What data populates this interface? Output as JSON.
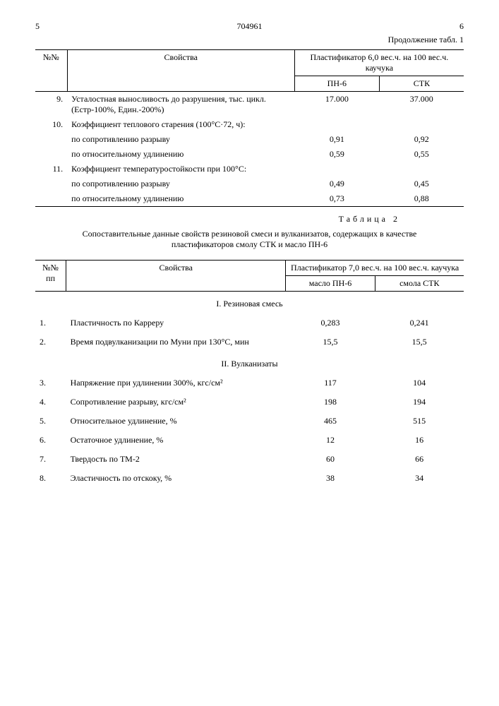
{
  "header": {
    "left_page": "5",
    "doc_number": "704961",
    "right_page": "6",
    "continuation": "Продолжение табл. 1"
  },
  "table1": {
    "col_num": "№№",
    "col_prop": "Свойства",
    "col_group": "Пластификатор 6,0 вес.ч. на 100 вес.ч. каучука",
    "col_a": "ПН-6",
    "col_b": "СТК",
    "rows": [
      {
        "n": "9.",
        "prop": "Усталостная выносливость до разрушения, тыс. цикл. (Естр-100%, Един.-200%)",
        "a": "17.000",
        "b": "37.000"
      },
      {
        "n": "10.",
        "prop": "Коэффициент теплового старения (100°С·72, ч):",
        "a": "",
        "b": ""
      },
      {
        "n": "",
        "prop": "по сопротивлению разрыву",
        "a": "0,91",
        "b": "0,92"
      },
      {
        "n": "",
        "prop": "по относительному удлинению",
        "a": "0,59",
        "b": "0,55"
      },
      {
        "n": "11.",
        "prop": "Коэффициент температуростойкости при 100°С:",
        "a": "",
        "b": ""
      },
      {
        "n": "",
        "prop": "по сопротивлению разрыву",
        "a": "0,49",
        "b": "0,45"
      },
      {
        "n": "",
        "prop": "по относительному удлинению",
        "a": "0,73",
        "b": "0,88"
      }
    ]
  },
  "table2_label": "Таблица 2",
  "table2_caption": "Сопоставительные данные свойств резиновой смеси и вулканизатов, содержащих в качестве пластификаторов смолу СТК и масло ПН-6",
  "table2": {
    "col_num": "№№ пп",
    "col_prop": "Свойства",
    "col_group": "Пластификатор 7,0 вес.ч. на 100 вес.ч. каучука",
    "col_a": "масло ПН-6",
    "col_b": "смола СТК",
    "section1": "I. Резиновая смесь",
    "section2": "II. Вулканизаты",
    "rows1": [
      {
        "n": "1.",
        "prop": "Пластичность по Карреру",
        "a": "0,283",
        "b": "0,241"
      },
      {
        "n": "2.",
        "prop": "Время подвулканизации по Муни при 130°С, мин",
        "a": "15,5",
        "b": "15,5"
      }
    ],
    "rows2": [
      {
        "n": "3.",
        "prop": "Напряжение при удлинении 300%, кгс/см²",
        "a": "117",
        "b": "104"
      },
      {
        "n": "4.",
        "prop": "Сопротивление разрыву, кгс/см²",
        "a": "198",
        "b": "194"
      },
      {
        "n": "5.",
        "prop": "Относительное удлинение, %",
        "a": "465",
        "b": "515"
      },
      {
        "n": "6.",
        "prop": "Остаточное удлинение, %",
        "a": "12",
        "b": "16"
      },
      {
        "n": "7.",
        "prop": "Твердость по ТМ-2",
        "a": "60",
        "b": "66"
      },
      {
        "n": "8.",
        "prop": "Эластичность по отскоку, %",
        "a": "38",
        "b": "34"
      }
    ]
  }
}
